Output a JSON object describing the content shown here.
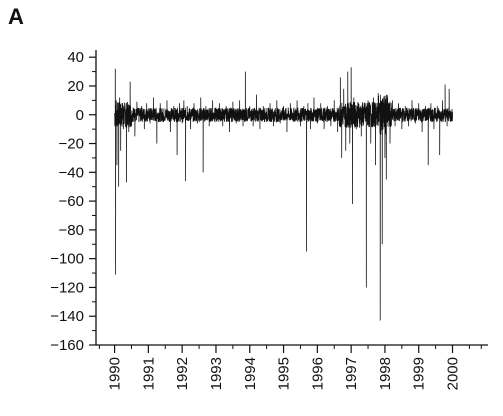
{
  "panel_label": "A",
  "chart_data": {
    "type": "line",
    "title": "",
    "xlabel": "",
    "ylabel": "",
    "xlim": [
      1989.45,
      2001.05
    ],
    "ylim": [
      -160,
      45
    ],
    "yticks": [
      40,
      20,
      0,
      -20,
      -40,
      -60,
      -80,
      -100,
      -120,
      -140,
      -160
    ],
    "xtick_labels": [
      "1990",
      "1991",
      "1992",
      "1993",
      "1994",
      "1995",
      "1996",
      "1997",
      "1998",
      "1999",
      "2000"
    ],
    "xticks": [
      1990,
      1991,
      1992,
      1993,
      1994,
      1995,
      1996,
      1997,
      1998,
      1999,
      2000
    ],
    "series": [
      {
        "color": "#111111",
        "points": [
          [
            1990.0,
            0
          ],
          [
            1990.01,
            -8
          ],
          [
            1990.02,
            32
          ],
          [
            1990.03,
            -111
          ],
          [
            1990.05,
            10
          ],
          [
            1990.07,
            -35
          ],
          [
            1990.1,
            6
          ],
          [
            1990.12,
            -50
          ],
          [
            1990.15,
            12
          ],
          [
            1990.18,
            -25
          ],
          [
            1990.22,
            8
          ],
          [
            1990.26,
            -10
          ],
          [
            1990.3,
            5
          ],
          [
            1990.35,
            -47
          ],
          [
            1990.38,
            4
          ],
          [
            1990.42,
            -12
          ],
          [
            1990.46,
            23
          ],
          [
            1990.5,
            -8
          ],
          [
            1990.55,
            5
          ],
          [
            1990.6,
            -15
          ],
          [
            1990.66,
            9
          ],
          [
            1990.72,
            -5
          ],
          [
            1990.8,
            6
          ],
          [
            1990.88,
            -10
          ],
          [
            1990.95,
            8
          ],
          [
            1991.05,
            -6
          ],
          [
            1991.15,
            12
          ],
          [
            1991.25,
            -20
          ],
          [
            1991.35,
            8
          ],
          [
            1991.45,
            -5
          ],
          [
            1991.55,
            10
          ],
          [
            1991.65,
            -12
          ],
          [
            1991.75,
            6
          ],
          [
            1991.85,
            -28
          ],
          [
            1991.92,
            8
          ],
          [
            1992.0,
            -6
          ],
          [
            1992.05,
            10
          ],
          [
            1992.1,
            -46
          ],
          [
            1992.15,
            6
          ],
          [
            1992.25,
            -10
          ],
          [
            1992.35,
            8
          ],
          [
            1992.45,
            -6
          ],
          [
            1992.55,
            12
          ],
          [
            1992.62,
            -40
          ],
          [
            1992.7,
            6
          ],
          [
            1992.8,
            -8
          ],
          [
            1992.9,
            10
          ],
          [
            1993.0,
            -5
          ],
          [
            1993.1,
            8
          ],
          [
            1993.2,
            -8
          ],
          [
            1993.3,
            6
          ],
          [
            1993.4,
            -12
          ],
          [
            1993.5,
            9
          ],
          [
            1993.6,
            -6
          ],
          [
            1993.7,
            10
          ],
          [
            1993.8,
            -8
          ],
          [
            1993.87,
            30
          ],
          [
            1993.92,
            -4
          ],
          [
            1994.0,
            6
          ],
          [
            1994.1,
            -8
          ],
          [
            1994.2,
            14
          ],
          [
            1994.3,
            -10
          ],
          [
            1994.4,
            6
          ],
          [
            1994.5,
            -5
          ],
          [
            1994.6,
            8
          ],
          [
            1994.7,
            -8
          ],
          [
            1994.8,
            10
          ],
          [
            1994.9,
            -6
          ],
          [
            1995.0,
            6
          ],
          [
            1995.1,
            -12
          ],
          [
            1995.2,
            8
          ],
          [
            1995.3,
            -5
          ],
          [
            1995.4,
            10
          ],
          [
            1995.5,
            -8
          ],
          [
            1995.6,
            6
          ],
          [
            1995.68,
            -95
          ],
          [
            1995.72,
            8
          ],
          [
            1995.8,
            -10
          ],
          [
            1995.9,
            12
          ],
          [
            1996.0,
            -6
          ],
          [
            1996.1,
            8
          ],
          [
            1996.2,
            -10
          ],
          [
            1996.3,
            6
          ],
          [
            1996.4,
            -8
          ],
          [
            1996.5,
            10
          ],
          [
            1996.6,
            -12
          ],
          [
            1996.68,
            26
          ],
          [
            1996.72,
            -30
          ],
          [
            1996.78,
            18
          ],
          [
            1996.84,
            -25
          ],
          [
            1996.9,
            30
          ],
          [
            1996.96,
            -20
          ],
          [
            1997.0,
            33
          ],
          [
            1997.04,
            -62
          ],
          [
            1997.08,
            12
          ],
          [
            1997.15,
            -10
          ],
          [
            1997.22,
            8
          ],
          [
            1997.3,
            -15
          ],
          [
            1997.38,
            6
          ],
          [
            1997.45,
            -120
          ],
          [
            1997.5,
            10
          ],
          [
            1997.58,
            -20
          ],
          [
            1997.66,
            12
          ],
          [
            1997.72,
            -35
          ],
          [
            1997.8,
            15
          ],
          [
            1997.86,
            -143
          ],
          [
            1997.88,
            10
          ],
          [
            1997.92,
            -90
          ],
          [
            1997.96,
            8
          ],
          [
            1998.0,
            -30
          ],
          [
            1998.04,
            -45
          ],
          [
            1998.08,
            6
          ],
          [
            1998.15,
            -20
          ],
          [
            1998.22,
            10
          ],
          [
            1998.3,
            -8
          ],
          [
            1998.4,
            8
          ],
          [
            1998.5,
            -10
          ],
          [
            1998.6,
            6
          ],
          [
            1998.7,
            -8
          ],
          [
            1998.8,
            10
          ],
          [
            1998.9,
            -6
          ],
          [
            1999.0,
            8
          ],
          [
            1999.1,
            -12
          ],
          [
            1999.2,
            6
          ],
          [
            1999.28,
            -35
          ],
          [
            1999.36,
            8
          ],
          [
            1999.45,
            -10
          ],
          [
            1999.55,
            6
          ],
          [
            1999.62,
            -28
          ],
          [
            1999.7,
            10
          ],
          [
            1999.78,
            21
          ],
          [
            1999.84,
            -8
          ],
          [
            1999.9,
            18
          ],
          [
            1999.95,
            -5
          ],
          [
            2000.0,
            -2
          ]
        ]
      }
    ],
    "grid": false,
    "legend": "none"
  }
}
